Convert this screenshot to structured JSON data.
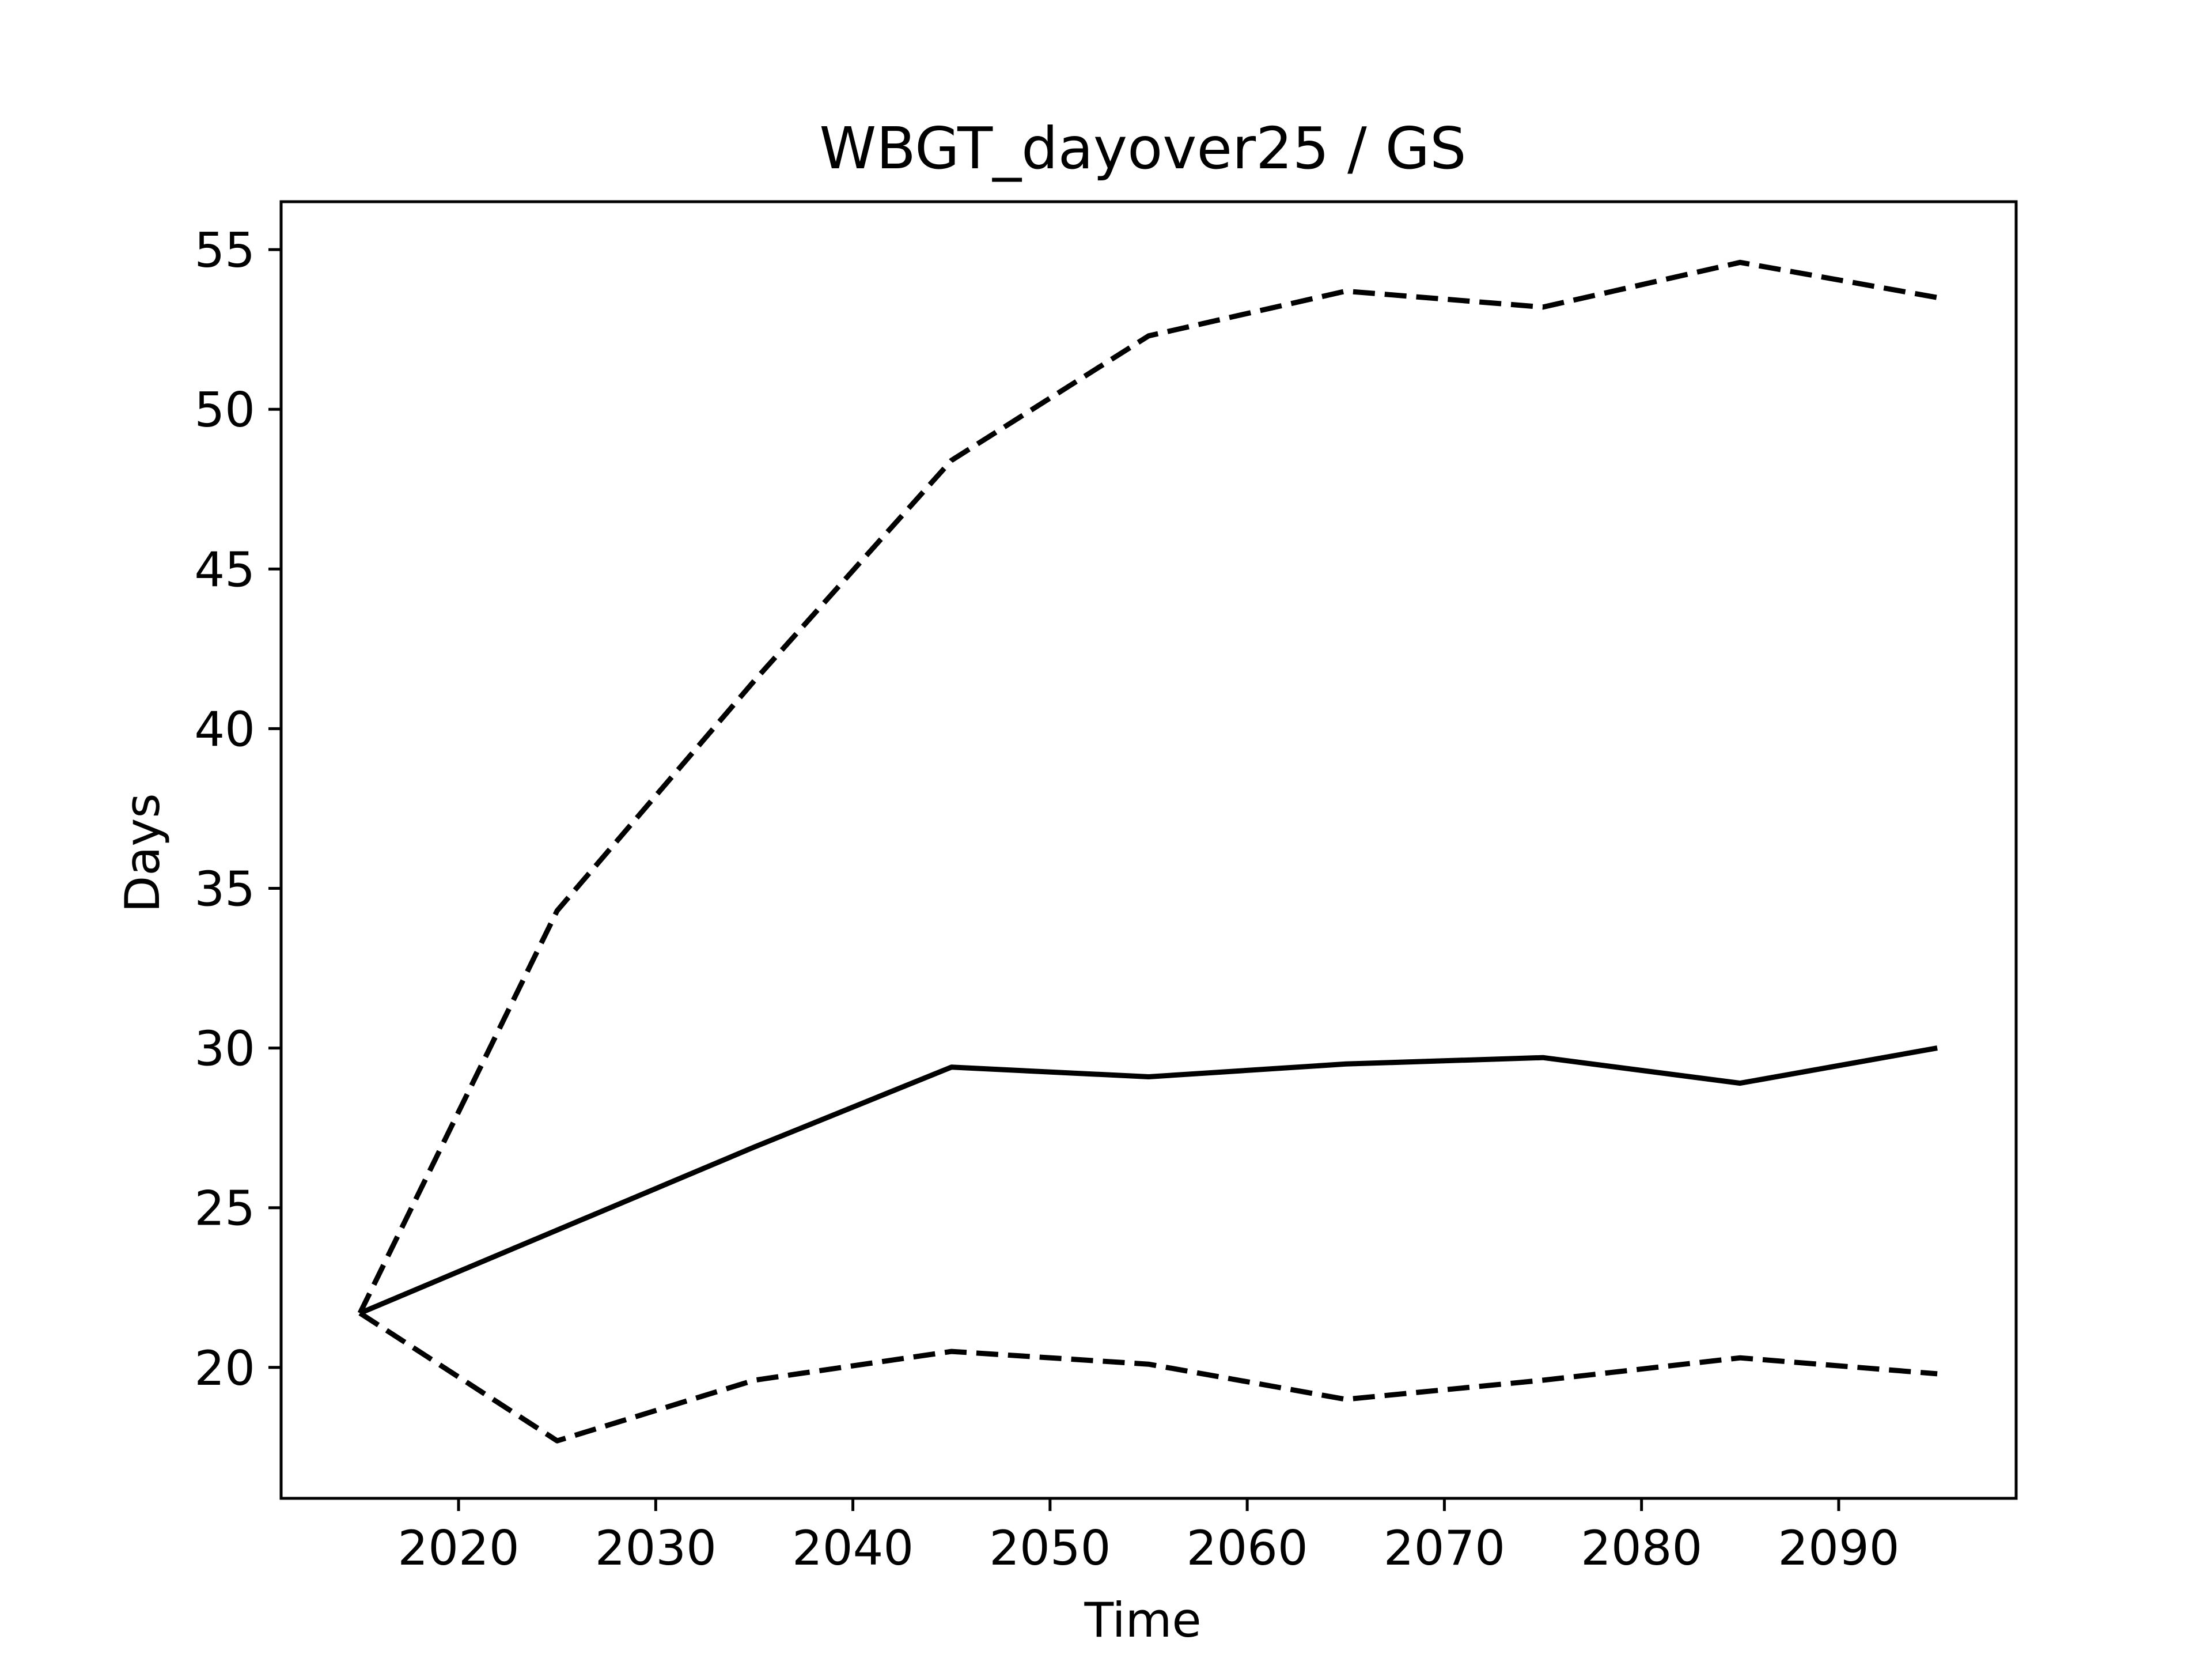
{
  "chart_data": {
    "type": "line",
    "title": "WBGT_dayover25 / GS",
    "xlabel": "Time",
    "ylabel": "Days",
    "xlim": [
      2011,
      2099
    ],
    "ylim": [
      15.9,
      56.5
    ],
    "xticks": [
      2020,
      2030,
      2040,
      2050,
      2060,
      2070,
      2080,
      2090
    ],
    "yticks": [
      20,
      25,
      30,
      35,
      40,
      45,
      50,
      55
    ],
    "grid": false,
    "legend": null,
    "x": [
      2015,
      2025,
      2035,
      2045,
      2055,
      2065,
      2075,
      2085,
      2095
    ],
    "series": [
      {
        "style": "dashed",
        "color": "#000000",
        "values": [
          21.7,
          34.3,
          41.5,
          48.4,
          52.3,
          53.7,
          53.2,
          54.6,
          53.5
        ]
      },
      {
        "style": "solid",
        "color": "#000000",
        "values": [
          21.7,
          24.3,
          26.9,
          29.4,
          29.1,
          29.5,
          29.7,
          28.9,
          30.0
        ]
      },
      {
        "style": "dashed",
        "color": "#000000",
        "values": [
          21.7,
          17.7,
          19.6,
          20.5,
          20.1,
          19.0,
          19.6,
          20.3,
          19.8
        ]
      }
    ]
  }
}
